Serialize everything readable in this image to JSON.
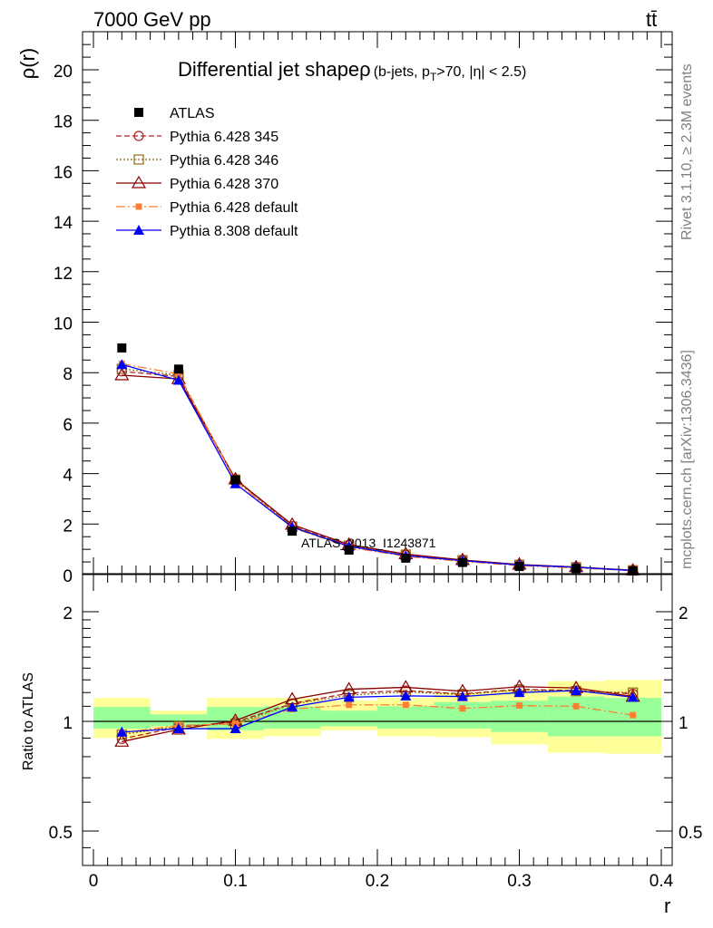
{
  "header": {
    "energy_label": "7000 GeV pp",
    "process_label": "tt̄"
  },
  "side_labels": {
    "rivet": "Rivet 3.1.10, ≥ 2.3M events",
    "mcplots": "mcplots.cern.ch [arXiv:1306.3436]"
  },
  "chart_data": [
    {
      "type": "line",
      "title": "Differential jet shapeρ (b-jets, p_T>70, |η| < 2.5)",
      "title_main": "Differential jet shapeρ",
      "title_sub": "(b-jets, p",
      "title_subscript": "T",
      "title_tail": ">70, |η| < 2.5)",
      "ylabel": "ρ(r)",
      "xlabel": "r",
      "xlim": [
        0,
        0.4
      ],
      "ylim": [
        0,
        21.5
      ],
      "watermark": "ATLAS_2013_I1243871",
      "x": [
        0.02,
        0.06,
        0.1,
        0.14,
        0.18,
        0.22,
        0.26,
        0.3,
        0.34,
        0.38
      ],
      "data": {
        "name": "ATLAS",
        "values": [
          8.98,
          8.14,
          3.75,
          1.72,
          0.97,
          0.65,
          0.48,
          0.32,
          0.24,
          0.14
        ]
      },
      "series": [
        {
          "name": "Pythia 6.428 345",
          "color": "#b22222",
          "values": [
            8.05,
            7.85,
            3.78,
            1.92,
            1.16,
            0.79,
            0.57,
            0.39,
            0.29,
            0.17
          ]
        },
        {
          "name": "Pythia 6.428 346",
          "color": "#8b6914",
          "values": [
            8.15,
            7.9,
            3.76,
            1.9,
            1.15,
            0.79,
            0.57,
            0.39,
            0.29,
            0.17
          ]
        },
        {
          "name": "Pythia 6.428 370",
          "color": "#8b0000",
          "values": [
            7.9,
            7.75,
            3.78,
            1.98,
            1.19,
            0.81,
            0.58,
            0.4,
            0.3,
            0.17
          ]
        },
        {
          "name": "Pythia 6.428 default",
          "color": "#ff7f32",
          "values": [
            8.35,
            7.95,
            3.7,
            1.86,
            1.08,
            0.72,
            0.52,
            0.35,
            0.26,
            0.15
          ]
        },
        {
          "name": "Pythia 8.308 default",
          "color": "#0000ff",
          "values": [
            8.32,
            7.7,
            3.6,
            1.88,
            1.12,
            0.75,
            0.55,
            0.38,
            0.29,
            0.16
          ]
        }
      ],
      "yticks": [
        0,
        2,
        4,
        6,
        8,
        10,
        12,
        14,
        16,
        18,
        20
      ]
    },
    {
      "type": "line",
      "ylabel": "Ratio to ATLAS",
      "xlabel": "r",
      "xlim": [
        0,
        0.4
      ],
      "ylim": [
        0.42,
        2.35
      ],
      "log_scale": true,
      "yticks": [
        0.5,
        1,
        2
      ],
      "xticks": [
        0,
        0.1,
        0.2,
        0.3,
        0.4
      ],
      "x": [
        0.02,
        0.06,
        0.1,
        0.14,
        0.18,
        0.22,
        0.26,
        0.3,
        0.34,
        0.38
      ],
      "bands": {
        "yellow": {
          "lo": [
            0.9,
            0.955,
            0.895,
            0.91,
            0.945,
            0.91,
            0.905,
            0.865,
            0.82,
            0.815
          ],
          "hi": [
            1.16,
            1.07,
            1.16,
            1.16,
            1.14,
            1.16,
            1.2,
            1.22,
            1.29,
            1.3
          ]
        },
        "green": {
          "lo": [
            0.955,
            0.97,
            0.945,
            0.955,
            0.97,
            0.955,
            0.955,
            0.935,
            0.91,
            0.91
          ],
          "hi": [
            1.095,
            1.045,
            1.095,
            1.1,
            1.07,
            1.1,
            1.13,
            1.14,
            1.17,
            1.16
          ]
        }
      },
      "series": [
        {
          "name": "Pythia 6.428 345",
          "values": [
            0.895,
            0.965,
            0.995,
            1.12,
            1.195,
            1.215,
            1.19,
            1.225,
            1.215,
            1.19
          ]
        },
        {
          "name": "Pythia 6.428 346",
          "values": [
            0.92,
            0.97,
            0.985,
            1.115,
            1.18,
            1.205,
            1.185,
            1.22,
            1.21,
            1.2
          ]
        },
        {
          "name": "Pythia 6.428 370",
          "values": [
            0.88,
            0.95,
            1.005,
            1.15,
            1.225,
            1.24,
            1.21,
            1.245,
            1.235,
            1.17
          ]
        },
        {
          "name": "Pythia 6.428 default",
          "values": [
            0.93,
            0.975,
            0.985,
            1.08,
            1.11,
            1.11,
            1.085,
            1.105,
            1.1,
            1.04
          ]
        },
        {
          "name": "Pythia 8.308 default",
          "values": [
            0.935,
            0.955,
            0.955,
            1.095,
            1.165,
            1.175,
            1.17,
            1.2,
            1.215,
            1.165
          ]
        }
      ]
    }
  ],
  "colors": {
    "yellow_band": "#ffff99",
    "green_band": "#99ff99",
    "watermark": "#a0a0a0"
  }
}
